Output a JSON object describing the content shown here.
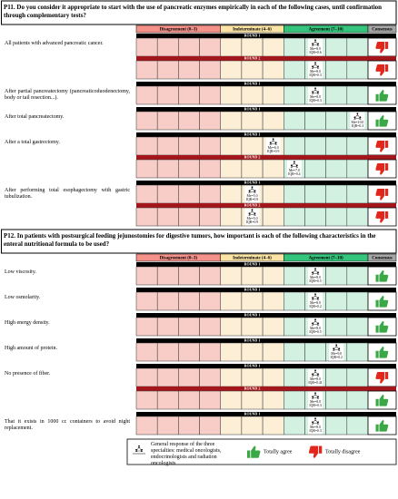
{
  "scale": [
    0,
    10
  ],
  "groups": [
    {
      "label": "Disagreement (0–3)",
      "from": 0,
      "to": 3,
      "header_color": "#f4928a",
      "cell_color": "#f8cdc8"
    },
    {
      "label": "Indeterminate (4–6)",
      "from": 4,
      "to": 6,
      "header_color": "#fbe3a4",
      "cell_color": "#fcefd6"
    },
    {
      "label": "Agreement (7–10)",
      "from": 7,
      "to": 10,
      "header_color": "#34c47c",
      "cell_color": "#d3f1e1"
    }
  ],
  "consensus_header": "Consensus",
  "round_labels": [
    "ROUND 1",
    "ROUND 2"
  ],
  "sections": [
    {
      "title": "P11. Do you consider it appropriate to start with the use of pancreatic enzymes empirically in each of the following cases, until confirmation through complementary tests?",
      "items": [
        {
          "label": "All patients with advanced pancreatic cancer.",
          "rounds": [
            {
              "median": {
                "value": 8,
                "label": "Me=8.0"
              },
              "iqr": "IQR=0.6",
              "consensus": "disagree"
            },
            {
              "median": {
                "value": 8,
                "label": "Me=8.0"
              },
              "iqr": "IQR=0.3",
              "consensus": "disagree"
            }
          ]
        },
        {
          "label": "After partial pancreatectomy (pancreaticoduodenectomy, body or tail resection...).",
          "rounds": [
            {
              "median": {
                "value": 8,
                "label": "Me=8.0"
              },
              "iqr": "IQR=0.3",
              "consensus": "agree"
            }
          ]
        },
        {
          "label": "After total pancreatectomy.",
          "rounds": [
            {
              "median": {
                "value": 10,
                "label": "Me=10.0"
              },
              "iqr": "IQR=0.3",
              "consensus": "agree"
            }
          ]
        },
        {
          "label": "After a total gastrectomy.",
          "rounds": [
            {
              "median": {
                "value": 6,
                "label": "Me=6.0"
              },
              "iqr": "IQR=0.9",
              "consensus": "disagree"
            },
            {
              "median": {
                "value": 7,
                "label": "Me=7.0"
              },
              "iqr": "IQR=0.4",
              "consensus": "disagree"
            }
          ]
        },
        {
          "label": "After performing total esophagectomy with gastric tubulization.",
          "rounds": [
            {
              "median": {
                "value": 5,
                "label": "Me=5.0"
              },
              "iqr": "IQR=0.9",
              "consensus": "disagree"
            },
            {
              "median": {
                "value": 5,
                "label": "Me=5.0"
              },
              "iqr": "IQR=0.9",
              "consensus": "disagree"
            }
          ]
        }
      ]
    },
    {
      "title": "P12. In patients with postsurgical feeding jejunostomies for digestive tumors, how important is each of the following characteristics in the enteral nutritional formula to be used?",
      "items": [
        {
          "label": "Low viscosity.",
          "rounds": [
            {
              "median": {
                "value": 8,
                "label": "Me=8.0"
              },
              "iqr": "IQR=0.5",
              "consensus": "agree"
            }
          ]
        },
        {
          "label": "Low osmolarity.",
          "rounds": [
            {
              "median": {
                "value": 8,
                "label": "Me=8.0"
              },
              "iqr": "IQR=0.2",
              "consensus": "agree"
            }
          ]
        },
        {
          "label": "High energy density.",
          "rounds": [
            {
              "median": {
                "value": 8,
                "label": "Me=8.0"
              },
              "iqr": "IQR=0.5",
              "consensus": "agree"
            }
          ]
        },
        {
          "label": "High amount of protein.",
          "rounds": [
            {
              "median": {
                "value": 9,
                "label": "Me=9.0"
              },
              "iqr": "IQR=0.2",
              "consensus": "agree"
            }
          ]
        },
        {
          "label": "No presence of fiber.",
          "rounds": [
            {
              "median": {
                "value": 8,
                "label": "Me=8.0"
              },
              "iqr": "IQR=0.41",
              "consensus": "disagree"
            },
            {
              "median": {
                "value": 8,
                "label": "Me=8.0"
              },
              "iqr": "IQR=0.3",
              "consensus": "agree"
            }
          ]
        },
        {
          "label": "That it exists in 1000 cc containers to avoid night replacement.",
          "rounds": [
            {
              "median": {
                "value": 8,
                "label": "Me=8.0"
              },
              "iqr": "IQR=0.3",
              "consensus": "agree"
            }
          ]
        }
      ]
    }
  ],
  "legend": {
    "general": "General response of the three specialties: medical oncologists, endocrinologists and radiation oncologists",
    "agree": "Totally agree",
    "disagree": "Totally disagree"
  }
}
